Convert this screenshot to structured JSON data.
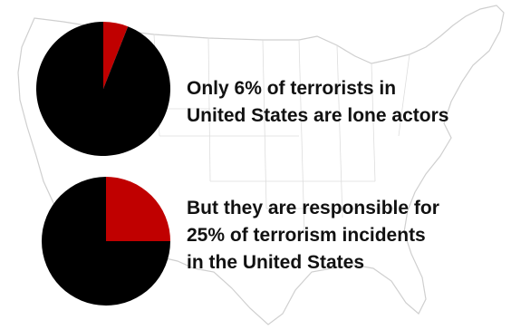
{
  "colors": {
    "segment_a": "#c00000",
    "segment_b": "#000000",
    "map_outline": "#cfcfcf"
  },
  "chart_data": [
    {
      "type": "pie",
      "slices": [
        {
          "value": 6,
          "color": "#c00000"
        },
        {
          "value": 94,
          "color": "#000000"
        }
      ],
      "caption": [
        "Only 6% of terrorists in",
        "United States are lone actors"
      ]
    },
    {
      "type": "pie",
      "slices": [
        {
          "value": 25,
          "color": "#c00000"
        },
        {
          "value": 75,
          "color": "#000000"
        }
      ],
      "caption": [
        "But they are responsible for",
        "25% of terrorism incidents",
        "in the United States"
      ]
    }
  ]
}
